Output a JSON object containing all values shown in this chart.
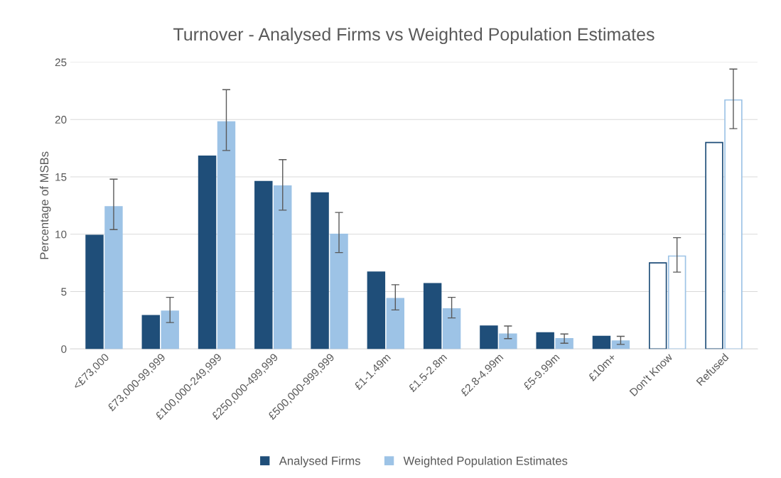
{
  "chart_data": {
    "type": "bar",
    "title": "Turnover - Analysed Firms vs Weighted Population Estimates",
    "ylabel": "Percentage of MSBs",
    "categories": [
      "<£73,000",
      "£73,000-99,999",
      "£100,000-249,999",
      "£250,000-499,999",
      "£500,000-999,999",
      "£1-1.49m",
      "£1.5-2.8m",
      "£2.8-4.99m",
      "£5-9.99m",
      "£10m+",
      "Don't Know",
      "Refused"
    ],
    "series": [
      {
        "name": "Analysed Firms",
        "color": "#1f4e79",
        "colors": [
          "#1f4e79",
          "#1f4e79",
          "#1f4e79",
          "#1f4e79",
          "#1f4e79",
          "#1f4e79",
          "#1f4e79",
          "#1f4e79",
          "#1f4e79",
          "#1f4e79",
          "#ffffff",
          "#ffffff"
        ],
        "values": [
          9.9,
          2.9,
          16.8,
          14.6,
          13.6,
          6.7,
          5.7,
          2.0,
          1.4,
          1.1,
          7.5,
          18.0
        ]
      },
      {
        "name": "Weighted Population Estimates",
        "color": "#9dc3e6",
        "colors": [
          "#9dc3e6",
          "#9dc3e6",
          "#9dc3e6",
          "#9dc3e6",
          "#9dc3e6",
          "#9dc3e6",
          "#9dc3e6",
          "#9dc3e6",
          "#9dc3e6",
          "#9dc3e6",
          "#ffffff",
          "#ffffff"
        ],
        "values": [
          12.4,
          3.3,
          19.8,
          14.2,
          10.0,
          4.4,
          3.5,
          1.3,
          0.9,
          0.7,
          8.1,
          21.7
        ],
        "errors": [
          [
            10.4,
            14.8
          ],
          [
            2.3,
            4.5
          ],
          [
            17.3,
            22.6
          ],
          [
            12.1,
            16.5
          ],
          [
            8.4,
            11.9
          ],
          [
            3.4,
            5.6
          ],
          [
            2.7,
            4.5
          ],
          [
            0.9,
            2.0
          ],
          [
            0.5,
            1.3
          ],
          [
            0.4,
            1.1
          ],
          [
            6.7,
            9.7
          ],
          [
            19.2,
            24.4
          ]
        ]
      }
    ],
    "ylim": [
      0,
      25
    ],
    "yticks": [
      0,
      5,
      10,
      15,
      20,
      25
    ],
    "grid": "y",
    "legend": "bottom"
  }
}
